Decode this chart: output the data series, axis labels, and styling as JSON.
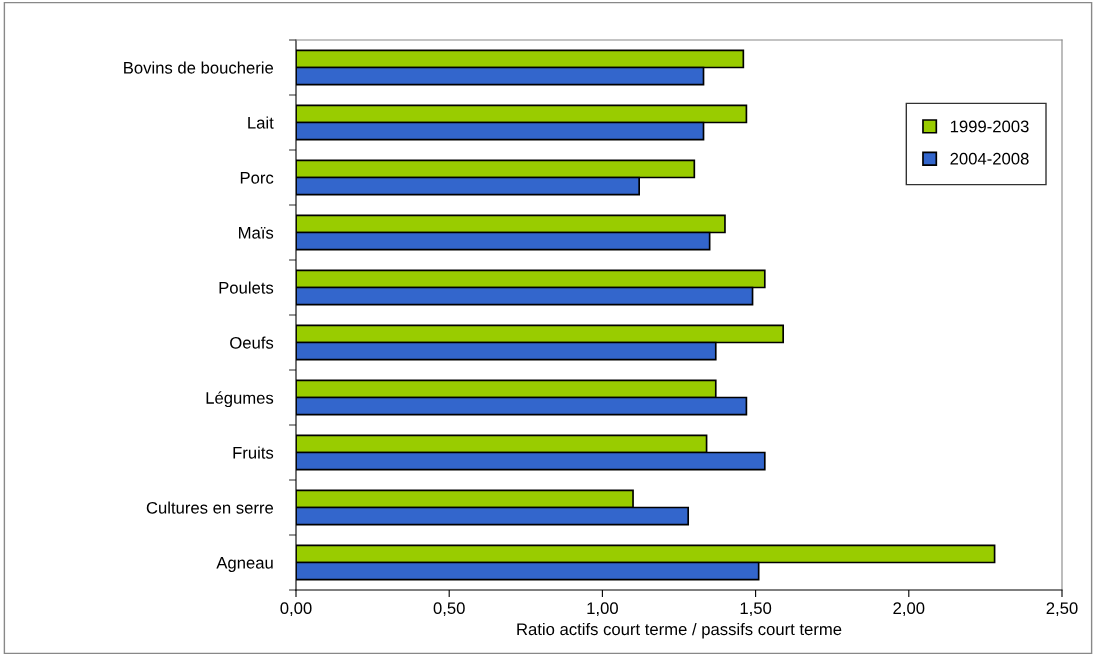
{
  "chart_data": {
    "type": "bar",
    "orientation": "horizontal",
    "xlabel": "Ratio actifs court terme / passifs court terme",
    "categories": [
      "Bovins de boucherie",
      "Lait",
      "Porc",
      "Maïs",
      "Poulets",
      "Oeufs",
      "Légumes",
      "Fruits",
      "Cultures en serre",
      "Agneau"
    ],
    "series": [
      {
        "name": "1999-2003",
        "color": "#99cc00",
        "values": [
          1.46,
          1.47,
          1.3,
          1.4,
          1.53,
          1.59,
          1.37,
          1.34,
          1.1,
          2.28
        ]
      },
      {
        "name": "2004-2008",
        "color": "#3366cc",
        "values": [
          1.33,
          1.33,
          1.12,
          1.35,
          1.49,
          1.37,
          1.47,
          1.53,
          1.28,
          1.51
        ]
      }
    ],
    "xlim": [
      0,
      2.5
    ],
    "xticks": [
      {
        "value": 0,
        "label": "0,00"
      },
      {
        "value": 0.5,
        "label": "0,50"
      },
      {
        "value": 1,
        "label": "1,00"
      },
      {
        "value": 1.5,
        "label": "1,50"
      },
      {
        "value": 2,
        "label": "2,00"
      },
      {
        "value": 2.5,
        "label": "2,50"
      }
    ],
    "grid": false,
    "legend": "top right"
  }
}
